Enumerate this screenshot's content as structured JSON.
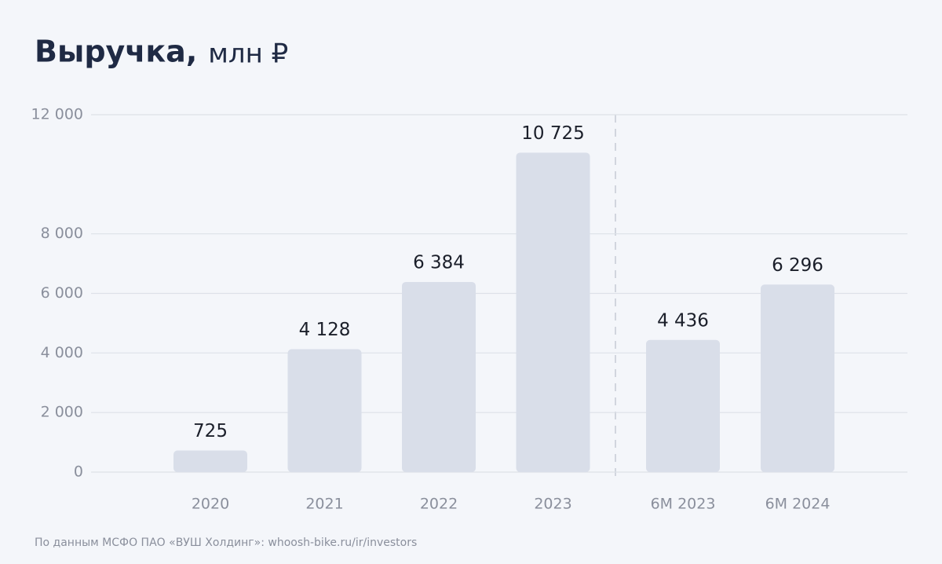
{
  "chart_data": {
    "type": "bar",
    "title": "Выручка,",
    "subtitle": "млн ₽",
    "categories": [
      "2020",
      "2021",
      "2022",
      "2023",
      "6M 2023",
      "6M 2024"
    ],
    "values": [
      725,
      4128,
      6384,
      10725,
      4436,
      6296
    ],
    "value_labels": [
      "725",
      "4 128",
      "6 384",
      "10 725",
      "4 436",
      "6 296"
    ],
    "color": "#d9dee9",
    "ylim": [
      0,
      12000
    ],
    "yticks": [
      0,
      {
        "value": 2000,
        "label": "2 000"
      },
      {
        "value": 4000,
        "label": "4 000"
      },
      {
        "value": 6000,
        "label": "6 000"
      },
      {
        "value": 8000,
        "label": "8 000"
      },
      {
        "value": 12000,
        "label": "12 000"
      }
    ],
    "grid": true,
    "source": "По данным МСФО ПАО «ВУШ Холдинг»: whoosh-bike.ru/ir/investors"
  }
}
